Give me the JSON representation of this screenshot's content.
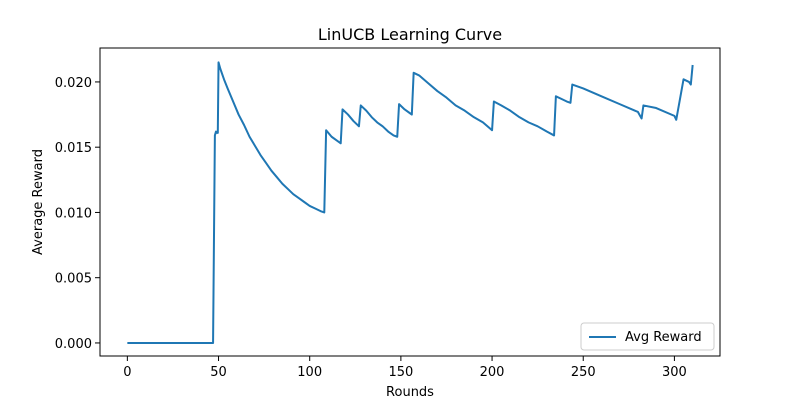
{
  "chart_data": {
    "type": "line",
    "title": "LinUCB Learning Curve",
    "xlabel": "Rounds",
    "ylabel": "Average Reward",
    "xlim": [
      -15,
      325
    ],
    "ylim": [
      -0.001,
      0.0226
    ],
    "xticks": [
      0,
      50,
      100,
      150,
      200,
      250,
      300
    ],
    "xtick_labels": [
      "0",
      "50",
      "100",
      "150",
      "200",
      "250",
      "300"
    ],
    "yticks": [
      0.0,
      0.005,
      0.01,
      0.015,
      0.02
    ],
    "ytick_labels": [
      "0.000",
      "0.005",
      "0.010",
      "0.015",
      "0.020"
    ],
    "grid": false,
    "legend": {
      "position": "bottom-right",
      "entries": [
        "Avg Reward"
      ]
    },
    "colors": {
      "series": "#1f77b4",
      "axis": "#000000",
      "legend_border": "#cccccc"
    },
    "series": [
      {
        "name": "Avg Reward",
        "x": [
          0,
          10,
          20,
          30,
          40,
          47,
          48,
          48.6,
          49,
          49.6,
          50,
          51,
          53,
          55,
          58,
          61,
          64,
          67,
          70,
          73,
          76,
          79,
          82,
          85,
          88,
          91,
          94,
          97,
          100,
          103,
          106,
          108,
          109,
          112,
          115,
          117,
          118,
          121,
          124,
          127,
          128,
          131,
          134,
          137,
          140,
          143,
          146,
          148,
          149,
          152,
          155,
          156,
          157,
          160,
          165,
          170,
          175,
          180,
          185,
          190,
          195,
          200,
          201,
          205,
          210,
          215,
          220,
          225,
          230,
          234,
          235,
          238,
          241,
          243,
          244,
          250,
          260,
          270,
          280,
          282,
          283,
          290,
          300,
          301,
          305,
          308,
          309,
          310
        ],
        "y": [
          0.0,
          0.0,
          0.0,
          0.0,
          0.0,
          0.0,
          0.0159,
          0.0162,
          0.0161,
          0.0161,
          0.0215,
          0.021,
          0.0202,
          0.0195,
          0.0185,
          0.0175,
          0.0167,
          0.0158,
          0.0151,
          0.0144,
          0.0138,
          0.0132,
          0.0127,
          0.0122,
          0.0118,
          0.0114,
          0.0111,
          0.0108,
          0.0105,
          0.0103,
          0.0101,
          0.01,
          0.0163,
          0.0158,
          0.0155,
          0.0153,
          0.0179,
          0.0175,
          0.017,
          0.0166,
          0.0182,
          0.0178,
          0.0173,
          0.0169,
          0.0166,
          0.0162,
          0.0159,
          0.0158,
          0.0183,
          0.0179,
          0.0176,
          0.0175,
          0.0207,
          0.0205,
          0.0199,
          0.0193,
          0.0188,
          0.0182,
          0.0178,
          0.0173,
          0.0169,
          0.0163,
          0.0185,
          0.0182,
          0.0178,
          0.0173,
          0.0169,
          0.0166,
          0.0162,
          0.0159,
          0.0189,
          0.0187,
          0.0185,
          0.0184,
          0.0198,
          0.0195,
          0.0189,
          0.0183,
          0.0177,
          0.0172,
          0.0182,
          0.018,
          0.0174,
          0.0171,
          0.0202,
          0.02,
          0.0198,
          0.0213
        ]
      }
    ]
  }
}
